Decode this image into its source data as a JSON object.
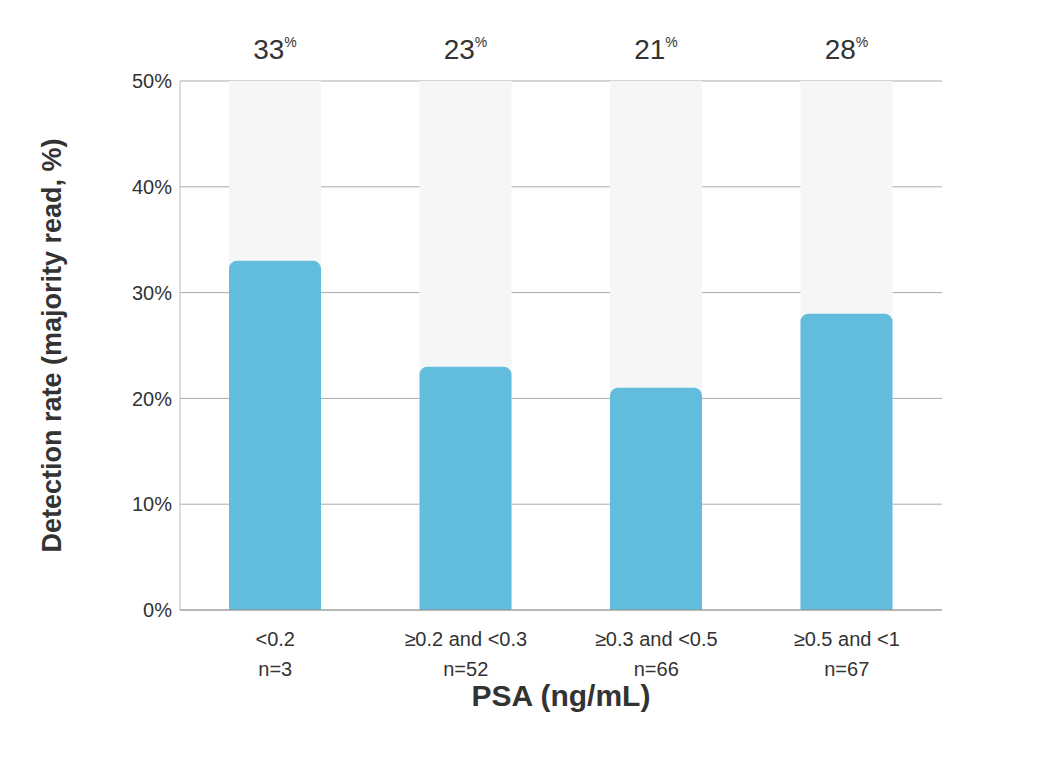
{
  "chart_data": {
    "type": "bar",
    "categories": [
      "<0.2",
      "≥0.2 and <0.3",
      "≥0.3 and <0.5",
      "≥0.5 and <1"
    ],
    "sample_labels": [
      "n=3",
      "n=52",
      "n=66",
      "n=67"
    ],
    "values": [
      33,
      23,
      21,
      28
    ],
    "value_labels": [
      "33%",
      "23%",
      "21%",
      "28%"
    ],
    "data_labels": true,
    "color": "#62bcdc",
    "xlabel": "PSA (ng/mL)",
    "ylabel": "Detection rate (majority read, %)",
    "ylim": [
      0,
      50
    ],
    "yticks": [
      {
        "value": 0,
        "label": "0%"
      },
      {
        "value": 10,
        "label": "10%"
      },
      {
        "value": 20,
        "label": "20%"
      },
      {
        "value": 30,
        "label": "30%"
      },
      {
        "value": 40,
        "label": "40%"
      },
      {
        "value": 50,
        "label": "50%"
      }
    ],
    "grid": true
  }
}
